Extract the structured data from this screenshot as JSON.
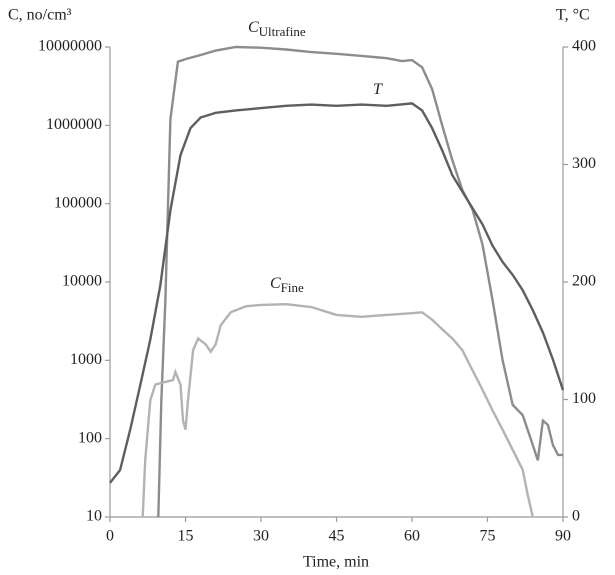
{
  "chart_data": {
    "type": "line",
    "x_label": "Time, min",
    "y_label": "C, no/cm³",
    "y2_label": "T, °C",
    "xlim": [
      0,
      90
    ],
    "xticks": [
      0,
      15,
      30,
      45,
      60,
      75,
      90
    ],
    "ylim": [
      10,
      10000000
    ],
    "yticks": [
      10,
      100,
      1000,
      10000,
      100000,
      1000000,
      10000000
    ],
    "ylog": true,
    "y2lim": [
      0,
      400
    ],
    "y2ticks": [
      0,
      100,
      200,
      300,
      400
    ],
    "series": [
      {
        "name": "C",
        "subscript": "Ultrafine",
        "color": "#8c8c8c",
        "x": [
          9.6,
          10.2,
          11,
          12,
          13.5,
          15,
          18,
          21,
          25,
          30,
          35,
          40,
          45,
          50,
          55,
          58,
          60,
          62,
          64,
          66,
          68,
          70,
          72,
          74,
          76,
          78,
          80,
          82,
          84,
          85,
          86,
          87,
          88,
          89,
          90
        ],
        "values": [
          10,
          300,
          5900,
          1200000,
          6500000,
          7000000,
          7900000,
          9000000,
          10000000,
          9800000,
          9300000,
          8600000,
          8200000,
          7700000,
          7200000,
          6600000,
          6800000,
          5500000,
          2900000,
          1000000,
          360000,
          150000,
          85000,
          30000,
          5900,
          1000,
          270,
          200,
          83,
          53,
          170,
          150,
          83,
          62,
          62
        ]
      },
      {
        "name": "T",
        "color": "#5e5e5e",
        "axis": "y2",
        "x": [
          0,
          2,
          4,
          6,
          8,
          10,
          12,
          14,
          16,
          18,
          21,
          25,
          30,
          35,
          40,
          45,
          50,
          55,
          60,
          62,
          64,
          66,
          68,
          70,
          72,
          74,
          76,
          78,
          80,
          82,
          84,
          86,
          88,
          90
        ],
        "values": [
          29,
          40,
          74,
          112,
          151,
          197,
          261,
          308,
          331,
          340,
          344,
          346,
          348,
          350,
          351,
          350,
          351,
          350,
          352,
          346,
          331,
          312,
          291,
          277,
          263,
          249,
          231,
          217,
          206,
          193,
          176,
          157,
          134,
          108
        ]
      },
      {
        "name": "C",
        "subscript": "Fine",
        "color": "#b3b3b3",
        "x": [
          6.5,
          7,
          8,
          9,
          11,
          12.5,
          13,
          14,
          14.5,
          15,
          15.5,
          16.5,
          17.5,
          19,
          20,
          21,
          22,
          24,
          27,
          30,
          35,
          40,
          45,
          50,
          55,
          60,
          62,
          64,
          66,
          68,
          70,
          72,
          74,
          76,
          78,
          80,
          82,
          83,
          84
        ],
        "values": [
          10,
          53,
          310,
          490,
          530,
          560,
          710,
          490,
          170,
          130,
          310,
          1350,
          1900,
          1600,
          1290,
          1600,
          2800,
          4100,
          4900,
          5100,
          5200,
          4800,
          3800,
          3600,
          3800,
          4000,
          4100,
          3300,
          2500,
          1900,
          1350,
          750,
          420,
          230,
          130,
          72,
          40,
          19,
          10
        ]
      }
    ]
  }
}
